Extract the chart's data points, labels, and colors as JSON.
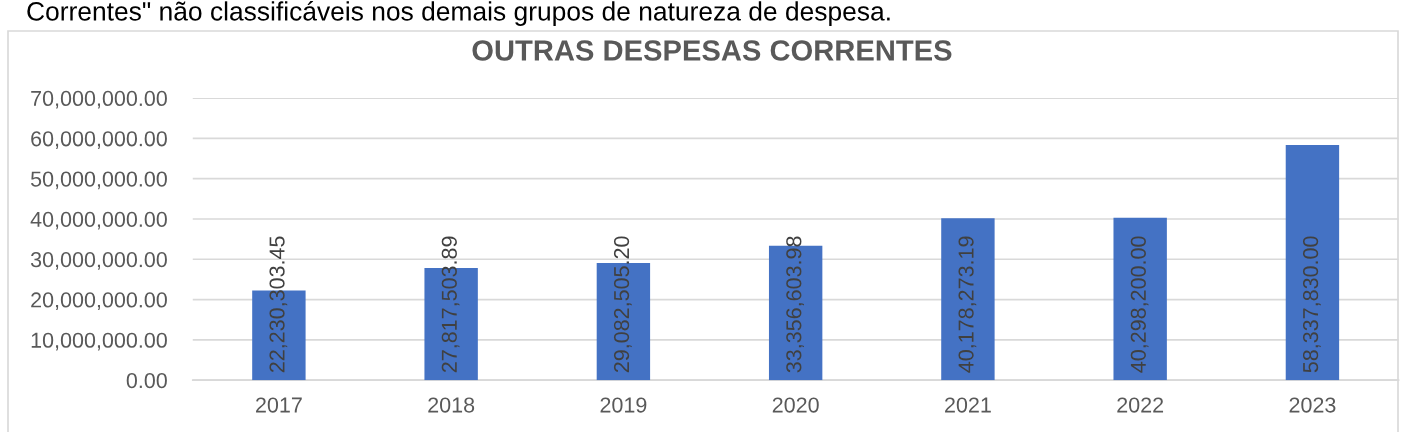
{
  "chart_data": {
    "type": "bar",
    "title": "OUTRAS DESPESAS CORRENTES",
    "annotations": [
      "Correntes\" não classificáveis nos demais grupos de natureza de despesa."
    ],
    "categories": [
      "2017",
      "2018",
      "2019",
      "2020",
      "2021",
      "2022",
      "2023"
    ],
    "values": [
      22230303.45,
      27817503.89,
      29082505.2,
      33356603.98,
      40178273.19,
      40298200.0,
      58337830.0
    ],
    "value_labels": [
      "22,230,303.45",
      "27,817,503.89",
      "29,082,505.20",
      "33,356,603.98",
      "40,178,273.19",
      "40,298,200.00",
      "58,337,830.00"
    ],
    "color": "#4472c4",
    "ylim": [
      0,
      70000000
    ],
    "yticks": [
      {
        "value": 0,
        "label": "0.00"
      },
      {
        "value": 10000000,
        "label": "10,000,000.00"
      },
      {
        "value": 20000000,
        "label": "20,000,000.00"
      },
      {
        "value": 30000000,
        "label": "30,000,000.00"
      },
      {
        "value": 40000000,
        "label": "40,000,000.00"
      },
      {
        "value": 50000000,
        "label": "50,000,000.00"
      },
      {
        "value": 60000000,
        "label": "60,000,000.00"
      },
      {
        "value": 70000000,
        "label": "70,000,000.00"
      }
    ],
    "grid": "y"
  }
}
